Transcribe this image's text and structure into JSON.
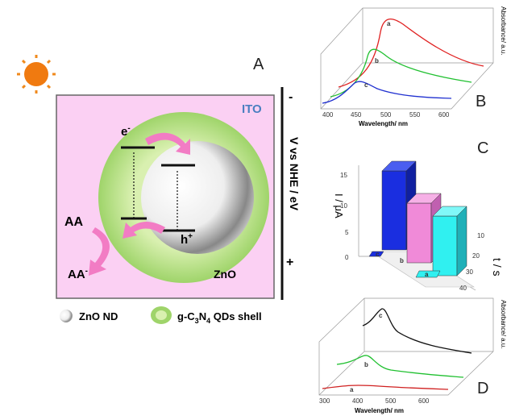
{
  "panel_a": {
    "label": "A",
    "ito": "ITO",
    "electron": "e",
    "electron_charge": "-",
    "hole": "h",
    "hole_charge": "+",
    "reactant": "AA",
    "product": "AA",
    "product_charge": "-",
    "core": "ZnO",
    "axis_label": "V vs NHE / eV",
    "axis_minus": "-",
    "axis_plus": "+"
  },
  "legend": {
    "core": "ZnO ND",
    "shell_parts": [
      "g-C",
      "3",
      "N",
      "4",
      " QDs shell"
    ]
  },
  "panel_b": {
    "label": "B",
    "x_label": "Wavelength/ nm",
    "y_label": "Absorbance/ a.u.",
    "x_ticks": [
      400,
      450,
      500,
      550,
      600
    ],
    "curve_labels": [
      "a",
      "b",
      "c"
    ]
  },
  "panel_c": {
    "label": "C",
    "y_label": "I / μA",
    "y_ticks": [
      0,
      5,
      10,
      15
    ],
    "t_label": "t / s",
    "t_ticks": [
      10,
      20,
      30,
      40
    ],
    "bar_labels": [
      "c",
      "b",
      "a"
    ]
  },
  "panel_d": {
    "label": "D",
    "x_label": "Wavelength/ nm",
    "y_label": "Absorbance/ a.u.",
    "x_ticks": [
      300,
      400,
      500,
      600
    ],
    "curve_labels": [
      "c",
      "b",
      "a"
    ]
  }
}
